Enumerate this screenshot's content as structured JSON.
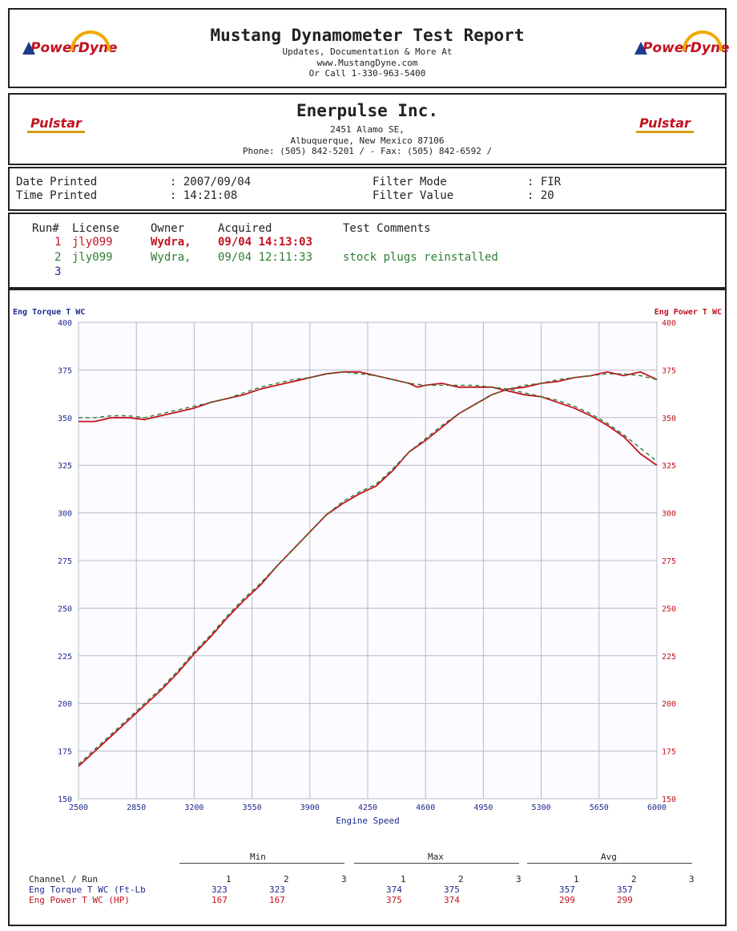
{
  "header": {
    "title": "Mustang Dynamometer Test Report",
    "line1": "Updates, Documentation & More At",
    "line2": "www.MustangDyne.com",
    "line3": "Or Call 1-330-963-5400",
    "logo_left": "PowerDyne",
    "logo_right": "PowerDyne"
  },
  "company": {
    "name": "Enerpulse Inc.",
    "address1": "2451 Alamo SE,",
    "address2": "Albuquerque, New Mexico  87106",
    "phone": "Phone: (505) 842-5201 /  - Fax: (505) 842-6592 /",
    "logo_left": "Pulstar",
    "logo_right": "Pulstar"
  },
  "print_info": {
    "date_label": "Date Printed",
    "date_value": ": 2007/09/04",
    "time_label": "Time Printed",
    "time_value": ": 14:21:08",
    "filter_mode_label": "Filter Mode",
    "filter_mode_value": ": FIR",
    "filter_value_label": "Filter Value",
    "filter_value_value": ": 20"
  },
  "runs": {
    "headers": [
      "Run#",
      "License",
      "Owner",
      "Acquired",
      "Test Comments"
    ],
    "rows": [
      {
        "run": "1",
        "license": "jly099",
        "owner": "Wydra,",
        "acquired": "09/04 14:13:03",
        "comment": "",
        "color": "#c1121f"
      },
      {
        "run": "2",
        "license": "jly099",
        "owner": "Wydra,",
        "acquired": "09/04 12:11:33",
        "comment": "stock plugs reinstalled",
        "color": "#2e7d32"
      },
      {
        "run": "3",
        "license": "",
        "owner": "",
        "acquired": "",
        "comment": "",
        "color": "#1d2a8f"
      }
    ]
  },
  "chart_data": {
    "type": "line",
    "xlabel": "Engine Speed",
    "ylabel_left": "Eng Torque T WC",
    "ylabel_right": "Eng Power T WC",
    "xlim": [
      2500,
      6000
    ],
    "ylim": [
      150,
      400
    ],
    "x_ticks": [
      2500,
      2850,
      3200,
      3550,
      3900,
      4250,
      4600,
      4950,
      5300,
      5650,
      6000
    ],
    "y_ticks": [
      150,
      175,
      200,
      225,
      250,
      275,
      300,
      325,
      350,
      375,
      400
    ],
    "grid": true,
    "series": [
      {
        "name": "",
        "run": 1,
        "channel": "torque",
        "color": "#c1121f",
        "dash": "",
        "x": [
          2500,
          2600,
          2700,
          2800,
          2900,
          3000,
          3100,
          3200,
          3300,
          3400,
          3500,
          3600,
          3700,
          3800,
          3900,
          4000,
          4100,
          4200,
          4300,
          4400,
          4500,
          4550,
          4600,
          4700,
          4800,
          4900,
          5000,
          5100,
          5200,
          5300,
          5400,
          5500,
          5600,
          5700,
          5800,
          5900,
          6000
        ],
        "y": [
          348,
          348,
          350,
          350,
          349,
          351,
          353,
          355,
          358,
          360,
          362,
          365,
          367,
          369,
          371,
          373,
          374,
          374,
          372,
          370,
          368,
          366,
          367,
          368,
          366,
          366,
          366,
          364,
          362,
          361,
          358,
          355,
          351,
          346,
          340,
          331,
          325
        ]
      },
      {
        "name": "",
        "run": 2,
        "channel": "torque",
        "color": "#2e7d32",
        "dash": "5,4",
        "x": [
          2500,
          2600,
          2700,
          2800,
          2900,
          3000,
          3100,
          3200,
          3300,
          3400,
          3500,
          3600,
          3700,
          3800,
          3900,
          4000,
          4100,
          4200,
          4300,
          4400,
          4500,
          4600,
          4700,
          4800,
          4900,
          5000,
          5100,
          5200,
          5300,
          5400,
          5500,
          5600,
          5700,
          5800,
          5900,
          6000
        ],
        "y": [
          350,
          350,
          351,
          351,
          350,
          352,
          354,
          356,
          358,
          360,
          363,
          366,
          368,
          370,
          371,
          373,
          374,
          373,
          372,
          370,
          368,
          367,
          367,
          367,
          367,
          366,
          365,
          363,
          361,
          359,
          356,
          352,
          347,
          341,
          334,
          327
        ]
      },
      {
        "name": "",
        "run": 1,
        "channel": "power",
        "color": "#c1121f",
        "dash": "",
        "x": [
          2500,
          2600,
          2700,
          2800,
          2900,
          3000,
          3100,
          3200,
          3300,
          3400,
          3500,
          3600,
          3700,
          3800,
          3900,
          4000,
          4100,
          4200,
          4300,
          4400,
          4500,
          4600,
          4700,
          4800,
          4900,
          5000,
          5100,
          5200,
          5300,
          5400,
          5500,
          5600,
          5700,
          5800,
          5900,
          6000
        ],
        "y": [
          167,
          175,
          183,
          191,
          199,
          207,
          216,
          226,
          235,
          245,
          254,
          262,
          272,
          281,
          290,
          299,
          305,
          310,
          314,
          322,
          332,
          338,
          345,
          352,
          357,
          362,
          365,
          366,
          368,
          369,
          371,
          372,
          374,
          372,
          374,
          370
        ]
      },
      {
        "name": "",
        "run": 2,
        "channel": "power",
        "color": "#2e7d32",
        "dash": "5,4",
        "x": [
          2500,
          2600,
          2700,
          2800,
          2900,
          3000,
          3100,
          3200,
          3300,
          3400,
          3500,
          3600,
          3700,
          3800,
          3900,
          4000,
          4100,
          4200,
          4300,
          4400,
          4500,
          4600,
          4700,
          4800,
          4900,
          5000,
          5100,
          5200,
          5300,
          5400,
          5500,
          5600,
          5700,
          5800,
          5900,
          6000
        ],
        "y": [
          168,
          176,
          184,
          192,
          200,
          208,
          217,
          227,
          236,
          246,
          255,
          263,
          272,
          281,
          290,
          299,
          306,
          311,
          315,
          323,
          332,
          339,
          346,
          352,
          357,
          362,
          365,
          367,
          368,
          370,
          371,
          372,
          373,
          373,
          372,
          370
        ]
      }
    ]
  },
  "summary": {
    "group_min": "Min",
    "group_max": "Max",
    "group_avg": "Avg",
    "channel_label": "Channel / Run",
    "run_cols": [
      "1",
      "2",
      "3"
    ],
    "rows": [
      {
        "label": "Eng Torque T WC (Ft-Lb",
        "color": "#1d2a8f",
        "min": [
          "323",
          "323"
        ],
        "max": [
          "374",
          "375"
        ],
        "avg": [
          "357",
          "357"
        ]
      },
      {
        "label": "Eng Power T WC (HP)",
        "color": "#c1121f",
        "min": [
          "167",
          "167"
        ],
        "max": [
          "375",
          "374"
        ],
        "avg": [
          "299",
          "299"
        ]
      }
    ]
  }
}
